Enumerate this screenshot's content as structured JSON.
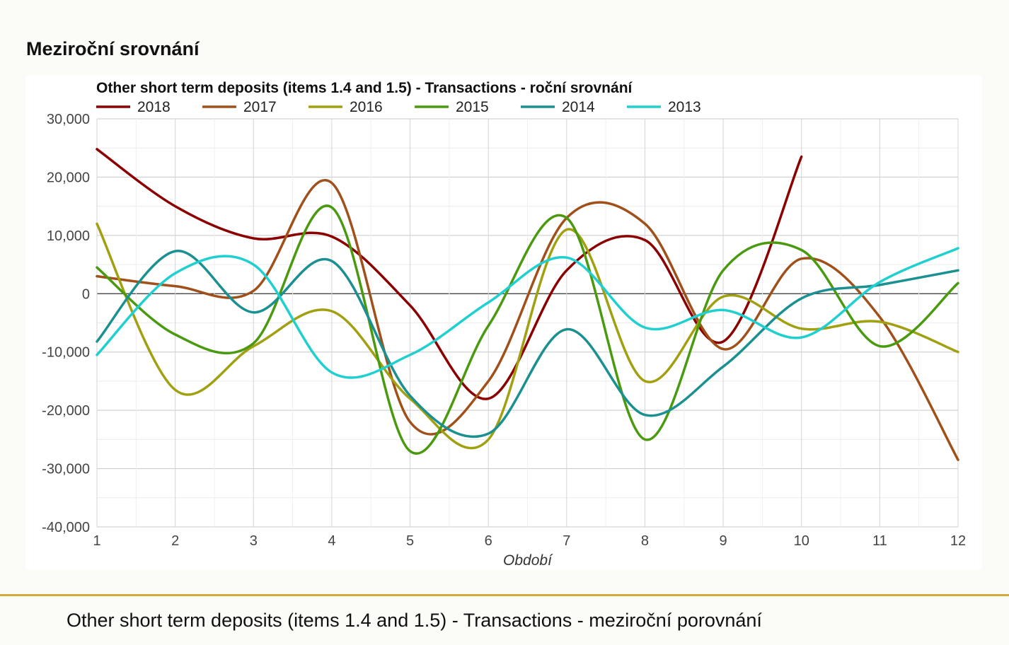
{
  "page": {
    "section_title": "Meziroční srovnání",
    "caption": "Other short term deposits (items 1.4 and 1.5) - Transactions - meziroční porovnání"
  },
  "chart_data": {
    "type": "line",
    "title": "Other short term deposits (items 1.4 and 1.5) - Transactions - roční srovnání",
    "xlabel": "Období",
    "ylabel": "",
    "x": [
      1,
      2,
      3,
      4,
      5,
      6,
      7,
      8,
      9,
      10,
      11,
      12
    ],
    "ylim": [
      -40000,
      30000
    ],
    "yticks": [
      30000,
      20000,
      10000,
      0,
      -10000,
      -20000,
      -30000,
      -40000
    ],
    "ytick_labels": [
      "30,000",
      "20,000",
      "10,000",
      "0",
      "-10,000",
      "-20,000",
      "-30,000",
      "-40,000"
    ],
    "xticks": [
      "1",
      "2",
      "3",
      "4",
      "5",
      "6",
      "7",
      "8",
      "9",
      "10",
      "11",
      "12"
    ],
    "grid": true,
    "legend_position": "top",
    "smooth": true,
    "series": [
      {
        "name": "2018",
        "color": "#8b0000",
        "values": [
          24800,
          15000,
          9500,
          9800,
          -2000,
          -18000,
          4000,
          9200,
          -8200,
          23500,
          null,
          null
        ]
      },
      {
        "name": "2017",
        "color": "#a0501a",
        "values": [
          3000,
          1300,
          500,
          19000,
          -22000,
          -15000,
          13000,
          12000,
          -9500,
          6000,
          -4000,
          -28500
        ]
      },
      {
        "name": "2016",
        "color": "#a0a010",
        "values": [
          12000,
          -16500,
          -9000,
          -3000,
          -18000,
          -25000,
          11000,
          -15000,
          -500,
          -6000,
          -4800,
          -10000
        ]
      },
      {
        "name": "2015",
        "color": "#4a9a10",
        "values": [
          4500,
          -7000,
          -8500,
          14800,
          -27000,
          -5500,
          13000,
          -25000,
          4000,
          7500,
          -9000,
          1800
        ]
      },
      {
        "name": "2014",
        "color": "#1a9090",
        "values": [
          -8200,
          7300,
          -3200,
          5600,
          -17500,
          -24000,
          -6100,
          -20800,
          -12500,
          -800,
          1500,
          4000
        ]
      },
      {
        "name": "2013",
        "color": "#20d0d0",
        "values": [
          -10500,
          3500,
          5000,
          -13500,
          -10500,
          -1500,
          6200,
          -5800,
          -2800,
          -7500,
          2000,
          7800
        ]
      }
    ]
  }
}
